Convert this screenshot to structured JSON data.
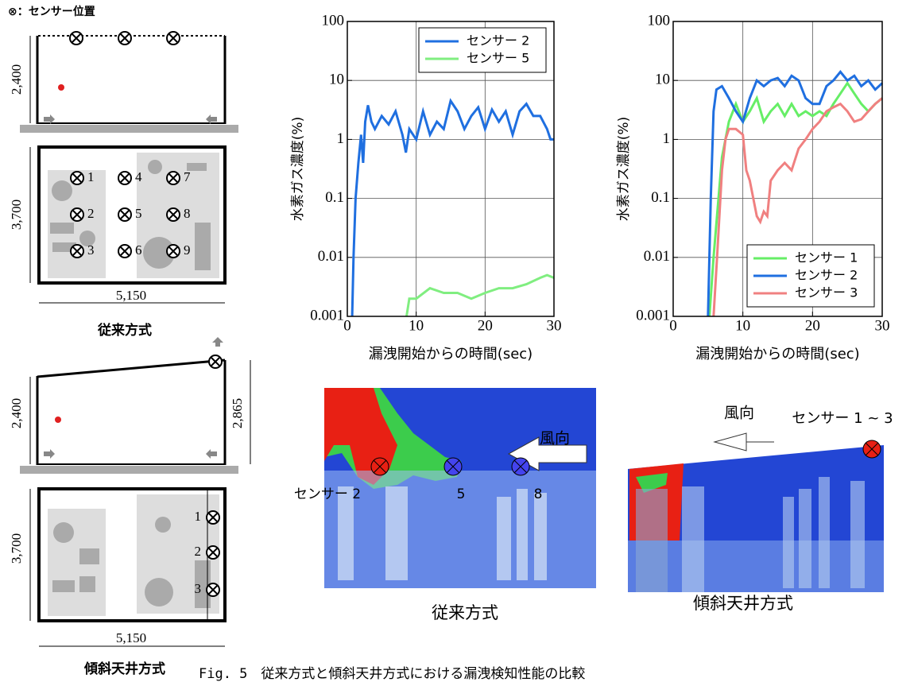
{
  "legend_note": "⊗：センサー位置",
  "diagrams": [
    {
      "height": "2,400",
      "depth": "3,700",
      "width": "5,150",
      "sensors": [
        "1",
        "2",
        "3",
        "4",
        "5",
        "6",
        "7",
        "8",
        "9"
      ],
      "label": "従来方式"
    },
    {
      "height": "2,400",
      "height_high": "2,865",
      "depth": "3,700",
      "width": "5,150",
      "sensors": [
        "1",
        "2",
        "3"
      ],
      "label": "傾斜天井方式"
    }
  ],
  "chart_data": [
    {
      "type": "line",
      "log_y": true,
      "grid": true,
      "legend": "upper right",
      "ylabel": "水素ガス濃度(%)",
      "xlabel": "漏洩開始からの時間(sec)",
      "xlim": [
        0,
        30
      ],
      "xticks": [
        0,
        10,
        20,
        30
      ],
      "ylim": [
        0.001,
        100
      ],
      "yticks": [
        0.001,
        0.01,
        0.1,
        1,
        10,
        100
      ],
      "series": [
        {
          "name": "センサー 2",
          "color": "#1f6fe0",
          "x": [
            0.7,
            0.9,
            1.2,
            1.6,
            2.0,
            2.3,
            2.6,
            3.0,
            3.5,
            4,
            5,
            6,
            7,
            8,
            8.5,
            9,
            10,
            11,
            12,
            13,
            14,
            15,
            16,
            17,
            18,
            19,
            20,
            21,
            22,
            23,
            24,
            25,
            26,
            27,
            28,
            29,
            29.5,
            30
          ],
          "values": [
            0.001,
            0.01,
            0.1,
            0.4,
            1.2,
            0.4,
            2,
            3.8,
            2,
            1.5,
            2.5,
            1.8,
            3,
            1.2,
            0.6,
            1.5,
            1,
            3,
            1.2,
            2,
            1.5,
            4.5,
            3,
            1.5,
            2.5,
            3.5,
            1.5,
            3.2,
            2,
            3,
            1.2,
            3,
            4,
            2.5,
            2.5,
            1.5,
            1,
            1
          ]
        },
        {
          "name": "センサー 5",
          "color": "#80ee80",
          "x": [
            8.6,
            9,
            10,
            12,
            14,
            16,
            18,
            20,
            22,
            24,
            26,
            28,
            29,
            30
          ],
          "values": [
            0.001,
            0.002,
            0.002,
            0.003,
            0.0025,
            0.0025,
            0.002,
            0.0025,
            0.003,
            0.003,
            0.0035,
            0.0045,
            0.005,
            0.0045
          ]
        }
      ]
    },
    {
      "type": "line",
      "log_y": true,
      "grid": true,
      "legend": "lower right",
      "ylabel": "水素ガス濃度(%)",
      "xlabel": "漏洩開始からの時間(sec)",
      "xlim": [
        0,
        30
      ],
      "xticks": [
        0,
        10,
        20,
        30
      ],
      "ylim": [
        0.001,
        100
      ],
      "yticks": [
        0.001,
        0.01,
        0.1,
        1,
        10,
        100
      ],
      "series": [
        {
          "name": "センサー 1",
          "color": "#66ee66",
          "x": [
            5.2,
            5.8,
            6.5,
            7,
            8,
            9,
            10,
            11,
            12,
            13,
            14,
            15,
            16,
            17,
            18,
            19,
            20,
            21,
            22,
            23,
            24,
            25,
            26,
            27,
            28,
            29,
            30
          ],
          "values": [
            0.001,
            0.01,
            0.1,
            0.5,
            2,
            4,
            2,
            3,
            5,
            2,
            3,
            4,
            2.5,
            4,
            2.5,
            3,
            2.5,
            3,
            2.5,
            4,
            6,
            9,
            6,
            4,
            3,
            4,
            5
          ]
        },
        {
          "name": "センサー 2",
          "color": "#1f6fe0",
          "x": [
            5,
            5.4,
            5.8,
            6.2,
            7,
            8,
            9,
            10,
            11,
            12,
            13,
            14,
            15,
            16,
            17,
            18,
            19,
            20,
            21,
            22,
            23,
            24,
            25,
            26,
            27,
            28,
            29,
            30
          ],
          "values": [
            0.001,
            0.1,
            3,
            7,
            8,
            5,
            3,
            2,
            5,
            10,
            8,
            10,
            11,
            8,
            12,
            10,
            5,
            4,
            4,
            8,
            10,
            14,
            10,
            12,
            8,
            10,
            7,
            9
          ]
        },
        {
          "name": "センサー 3",
          "color": "#f08080",
          "x": [
            5.8,
            6.3,
            7,
            7.5,
            8,
            9,
            10,
            10.5,
            11,
            11.5,
            12,
            12.5,
            13,
            13.5,
            14,
            15,
            16,
            17,
            18,
            19,
            20,
            21,
            22,
            23,
            24,
            25,
            26,
            27,
            28,
            29,
            30
          ],
          "values": [
            0.001,
            0.01,
            0.3,
            1,
            1.5,
            1.5,
            1.2,
            0.3,
            0.2,
            0.1,
            0.05,
            0.04,
            0.06,
            0.05,
            0.2,
            0.3,
            0.4,
            0.3,
            0.7,
            1,
            1.5,
            2,
            3,
            3.5,
            4,
            3,
            2,
            2.2,
            3,
            4,
            5
          ]
        }
      ]
    }
  ],
  "simulations": [
    {
      "wind": "風向",
      "sensor_labels": [
        "センサー 2",
        "5",
        "8"
      ],
      "label": "従来方式"
    },
    {
      "wind": "風向",
      "sensor_label": "センサー 1 ~ 3",
      "label": "傾斜天井方式"
    }
  ],
  "caption": "Fig. 5　従来方式と傾斜天井方式における漏洩検知性能の比較"
}
